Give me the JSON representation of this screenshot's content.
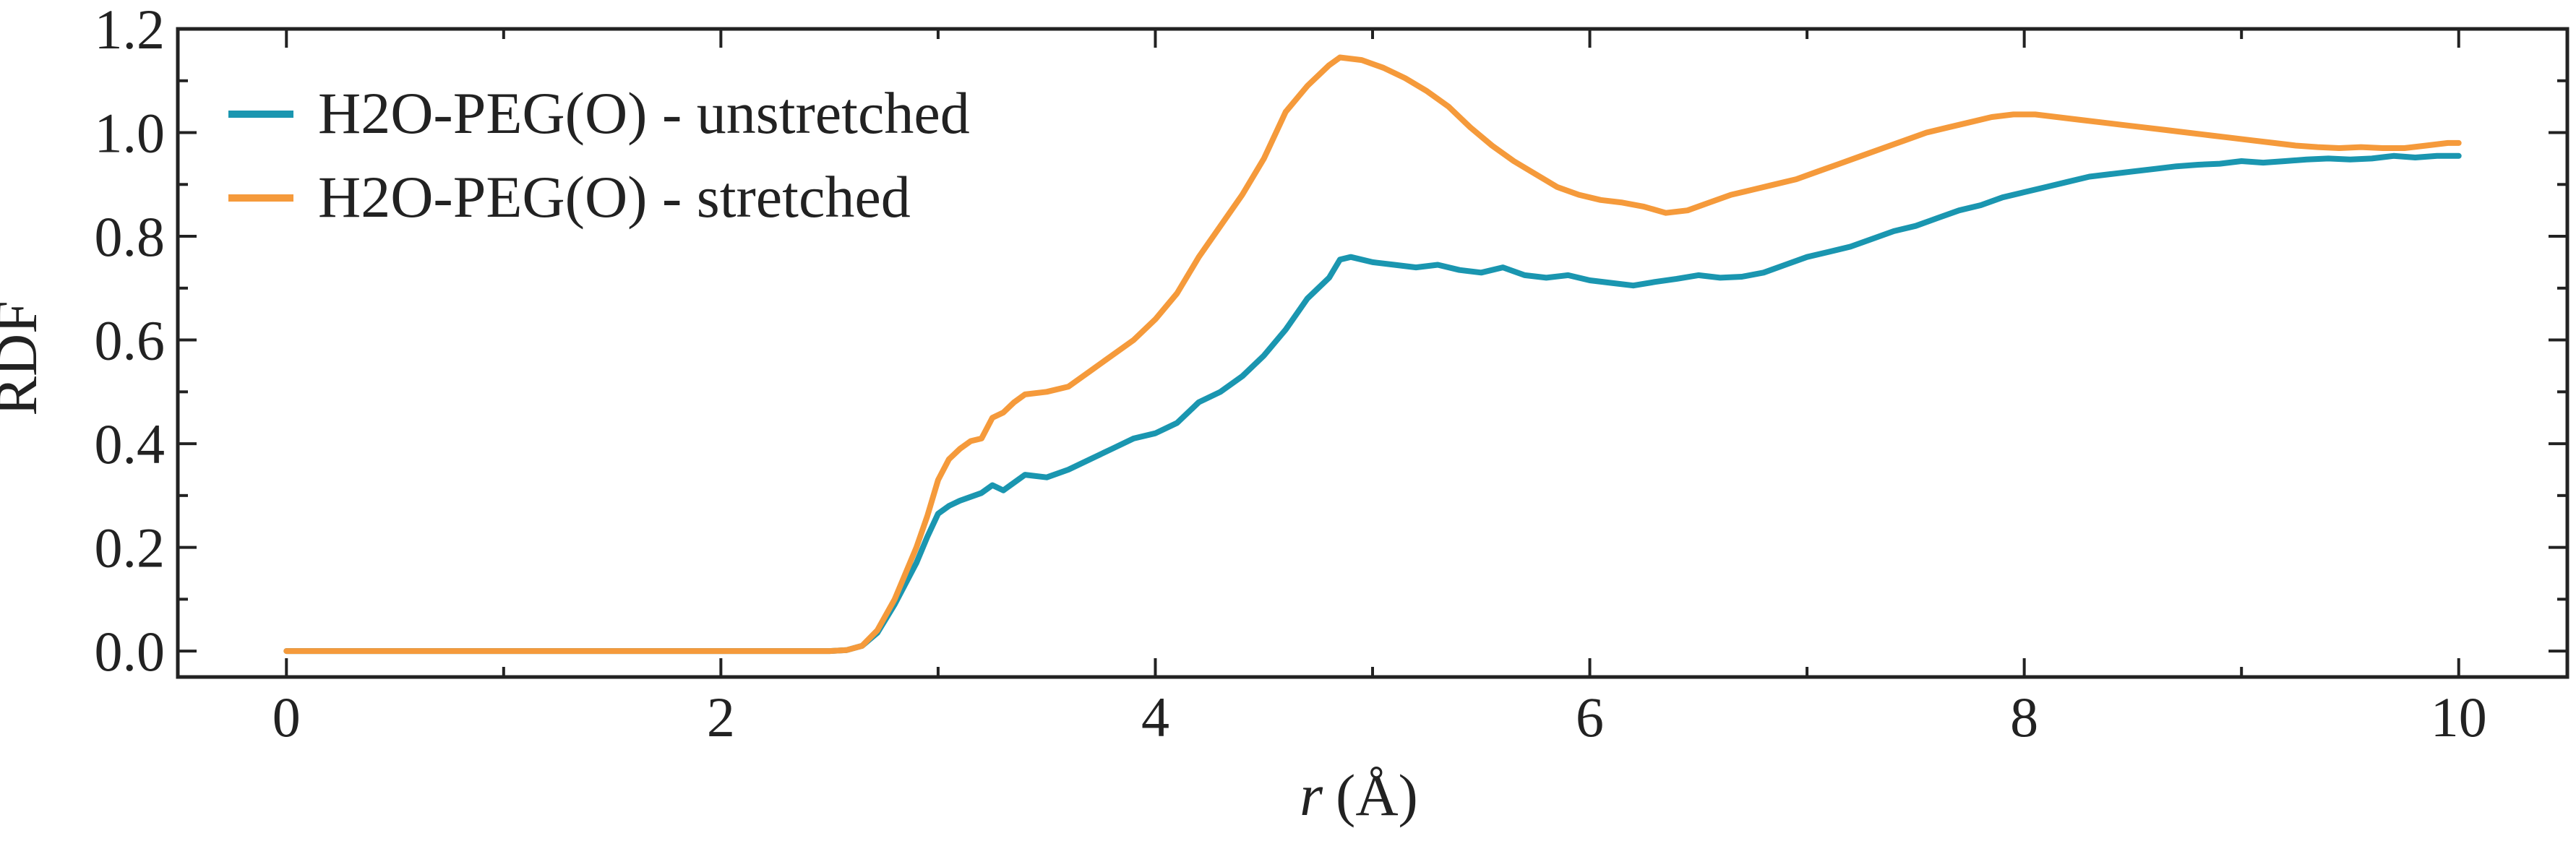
{
  "chart_data": {
    "type": "line",
    "xlabel_italic": "r",
    "xlabel_unit": "(Å)",
    "ylabel": "RDF",
    "xlim": [
      -0.5,
      10.5
    ],
    "ylim": [
      -0.05,
      1.2
    ],
    "xticks": [
      0,
      2,
      4,
      6,
      8,
      10
    ],
    "xtick_labels": [
      "0",
      "2",
      "4",
      "6",
      "8",
      "10"
    ],
    "xminor": [
      1,
      3,
      5,
      7,
      9
    ],
    "yticks": [
      0.0,
      0.2,
      0.4,
      0.6,
      0.8,
      1.0,
      1.2
    ],
    "ytick_labels": [
      "0.0",
      "0.2",
      "0.4",
      "0.6",
      "0.8",
      "1.0",
      "1.2"
    ],
    "yminor": [
      0.1,
      0.3,
      0.5,
      0.7,
      0.9,
      1.1
    ],
    "grid": false,
    "legend_position": "top-left",
    "series": [
      {
        "name": "H2O-PEG(O) - unstretched",
        "color": "#1a96b0",
        "points": [
          [
            0,
            0
          ],
          [
            2.5,
            0
          ],
          [
            2.58,
            0.002
          ],
          [
            2.65,
            0.01
          ],
          [
            2.72,
            0.035
          ],
          [
            2.8,
            0.09
          ],
          [
            2.9,
            0.17
          ],
          [
            2.95,
            0.22
          ],
          [
            3.0,
            0.265
          ],
          [
            3.05,
            0.28
          ],
          [
            3.1,
            0.29
          ],
          [
            3.2,
            0.305
          ],
          [
            3.25,
            0.32
          ],
          [
            3.3,
            0.31
          ],
          [
            3.4,
            0.34
          ],
          [
            3.5,
            0.335
          ],
          [
            3.6,
            0.35
          ],
          [
            3.7,
            0.37
          ],
          [
            3.8,
            0.39
          ],
          [
            3.9,
            0.41
          ],
          [
            4.0,
            0.42
          ],
          [
            4.1,
            0.44
          ],
          [
            4.2,
            0.48
          ],
          [
            4.3,
            0.5
          ],
          [
            4.4,
            0.53
          ],
          [
            4.5,
            0.57
          ],
          [
            4.6,
            0.62
          ],
          [
            4.7,
            0.68
          ],
          [
            4.8,
            0.72
          ],
          [
            4.85,
            0.755
          ],
          [
            4.9,
            0.76
          ],
          [
            5.0,
            0.75
          ],
          [
            5.1,
            0.745
          ],
          [
            5.2,
            0.74
          ],
          [
            5.3,
            0.745
          ],
          [
            5.4,
            0.735
          ],
          [
            5.5,
            0.73
          ],
          [
            5.6,
            0.74
          ],
          [
            5.7,
            0.725
          ],
          [
            5.8,
            0.72
          ],
          [
            5.9,
            0.725
          ],
          [
            6.0,
            0.715
          ],
          [
            6.1,
            0.71
          ],
          [
            6.2,
            0.705
          ],
          [
            6.3,
            0.712
          ],
          [
            6.4,
            0.718
          ],
          [
            6.5,
            0.725
          ],
          [
            6.6,
            0.72
          ],
          [
            6.7,
            0.722
          ],
          [
            6.8,
            0.73
          ],
          [
            6.9,
            0.745
          ],
          [
            7.0,
            0.76
          ],
          [
            7.1,
            0.77
          ],
          [
            7.2,
            0.78
          ],
          [
            7.3,
            0.795
          ],
          [
            7.4,
            0.81
          ],
          [
            7.5,
            0.82
          ],
          [
            7.6,
            0.835
          ],
          [
            7.7,
            0.85
          ],
          [
            7.8,
            0.86
          ],
          [
            7.9,
            0.875
          ],
          [
            8.0,
            0.885
          ],
          [
            8.1,
            0.895
          ],
          [
            8.2,
            0.905
          ],
          [
            8.3,
            0.915
          ],
          [
            8.4,
            0.92
          ],
          [
            8.5,
            0.925
          ],
          [
            8.6,
            0.93
          ],
          [
            8.7,
            0.935
          ],
          [
            8.8,
            0.938
          ],
          [
            8.9,
            0.94
          ],
          [
            9.0,
            0.945
          ],
          [
            9.1,
            0.942
          ],
          [
            9.2,
            0.945
          ],
          [
            9.3,
            0.948
          ],
          [
            9.4,
            0.95
          ],
          [
            9.5,
            0.948
          ],
          [
            9.6,
            0.95
          ],
          [
            9.7,
            0.955
          ],
          [
            9.8,
            0.952
          ],
          [
            9.9,
            0.955
          ],
          [
            10.0,
            0.955
          ]
        ]
      },
      {
        "name": "H2O-PEG(O) - stretched",
        "color": "#f59a3b",
        "points": [
          [
            0,
            0
          ],
          [
            2.5,
            0
          ],
          [
            2.58,
            0.002
          ],
          [
            2.65,
            0.01
          ],
          [
            2.72,
            0.04
          ],
          [
            2.8,
            0.1
          ],
          [
            2.9,
            0.2
          ],
          [
            2.95,
            0.26
          ],
          [
            3.0,
            0.33
          ],
          [
            3.05,
            0.37
          ],
          [
            3.1,
            0.39
          ],
          [
            3.15,
            0.405
          ],
          [
            3.2,
            0.41
          ],
          [
            3.25,
            0.45
          ],
          [
            3.3,
            0.46
          ],
          [
            3.35,
            0.48
          ],
          [
            3.4,
            0.495
          ],
          [
            3.5,
            0.5
          ],
          [
            3.6,
            0.51
          ],
          [
            3.7,
            0.54
          ],
          [
            3.8,
            0.57
          ],
          [
            3.9,
            0.6
          ],
          [
            4.0,
            0.64
          ],
          [
            4.1,
            0.69
          ],
          [
            4.2,
            0.76
          ],
          [
            4.3,
            0.82
          ],
          [
            4.4,
            0.88
          ],
          [
            4.5,
            0.95
          ],
          [
            4.6,
            1.04
          ],
          [
            4.7,
            1.09
          ],
          [
            4.8,
            1.13
          ],
          [
            4.85,
            1.145
          ],
          [
            4.95,
            1.14
          ],
          [
            5.05,
            1.125
          ],
          [
            5.15,
            1.105
          ],
          [
            5.25,
            1.08
          ],
          [
            5.35,
            1.05
          ],
          [
            5.45,
            1.01
          ],
          [
            5.55,
            0.975
          ],
          [
            5.65,
            0.945
          ],
          [
            5.75,
            0.92
          ],
          [
            5.85,
            0.895
          ],
          [
            5.95,
            0.88
          ],
          [
            6.05,
            0.87
          ],
          [
            6.15,
            0.865
          ],
          [
            6.25,
            0.857
          ],
          [
            6.35,
            0.845
          ],
          [
            6.45,
            0.85
          ],
          [
            6.55,
            0.865
          ],
          [
            6.65,
            0.88
          ],
          [
            6.75,
            0.89
          ],
          [
            6.85,
            0.9
          ],
          [
            6.95,
            0.91
          ],
          [
            7.05,
            0.925
          ],
          [
            7.15,
            0.94
          ],
          [
            7.25,
            0.955
          ],
          [
            7.35,
            0.97
          ],
          [
            7.45,
            0.985
          ],
          [
            7.55,
            1.0
          ],
          [
            7.65,
            1.01
          ],
          [
            7.75,
            1.02
          ],
          [
            7.85,
            1.03
          ],
          [
            7.95,
            1.035
          ],
          [
            8.05,
            1.035
          ],
          [
            8.15,
            1.03
          ],
          [
            8.25,
            1.025
          ],
          [
            8.35,
            1.02
          ],
          [
            8.45,
            1.015
          ],
          [
            8.55,
            1.01
          ],
          [
            8.65,
            1.005
          ],
          [
            8.75,
            1.0
          ],
          [
            8.85,
            0.995
          ],
          [
            8.95,
            0.99
          ],
          [
            9.05,
            0.985
          ],
          [
            9.15,
            0.98
          ],
          [
            9.25,
            0.975
          ],
          [
            9.35,
            0.972
          ],
          [
            9.45,
            0.97
          ],
          [
            9.55,
            0.972
          ],
          [
            9.65,
            0.97
          ],
          [
            9.75,
            0.97
          ],
          [
            9.85,
            0.975
          ],
          [
            9.95,
            0.98
          ],
          [
            10.0,
            0.98
          ]
        ]
      }
    ]
  }
}
